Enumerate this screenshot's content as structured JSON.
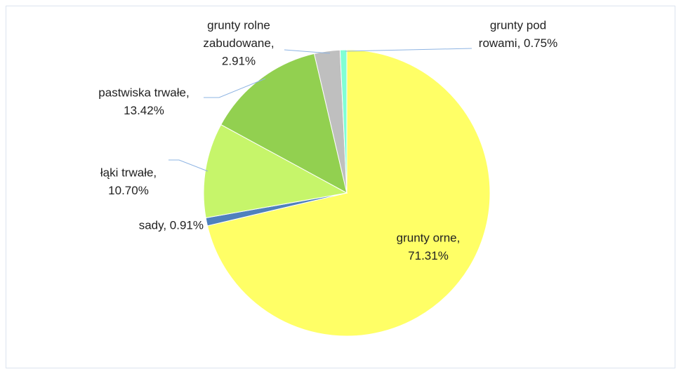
{
  "chart_data": {
    "type": "pie",
    "values": [
      71.31,
      0.91,
      10.7,
      13.42,
      2.91,
      0.75
    ],
    "value_labels": [
      [
        "grunty orne,",
        "71.31%"
      ],
      [
        "sady, 0.91%"
      ],
      [
        "łąki trwałe,",
        "10.70%"
      ],
      [
        "pastwiska trwałe,",
        "13.42%"
      ],
      [
        "grunty rolne",
        "zabudowane,",
        "2.91%"
      ],
      [
        "grunty pod",
        "rowami, 0.75%"
      ]
    ],
    "colors": [
      "#ffff66",
      "#4f81bd",
      "#c6f56a",
      "#92d050",
      "#bfbfbf",
      "#7fffd4"
    ]
  }
}
